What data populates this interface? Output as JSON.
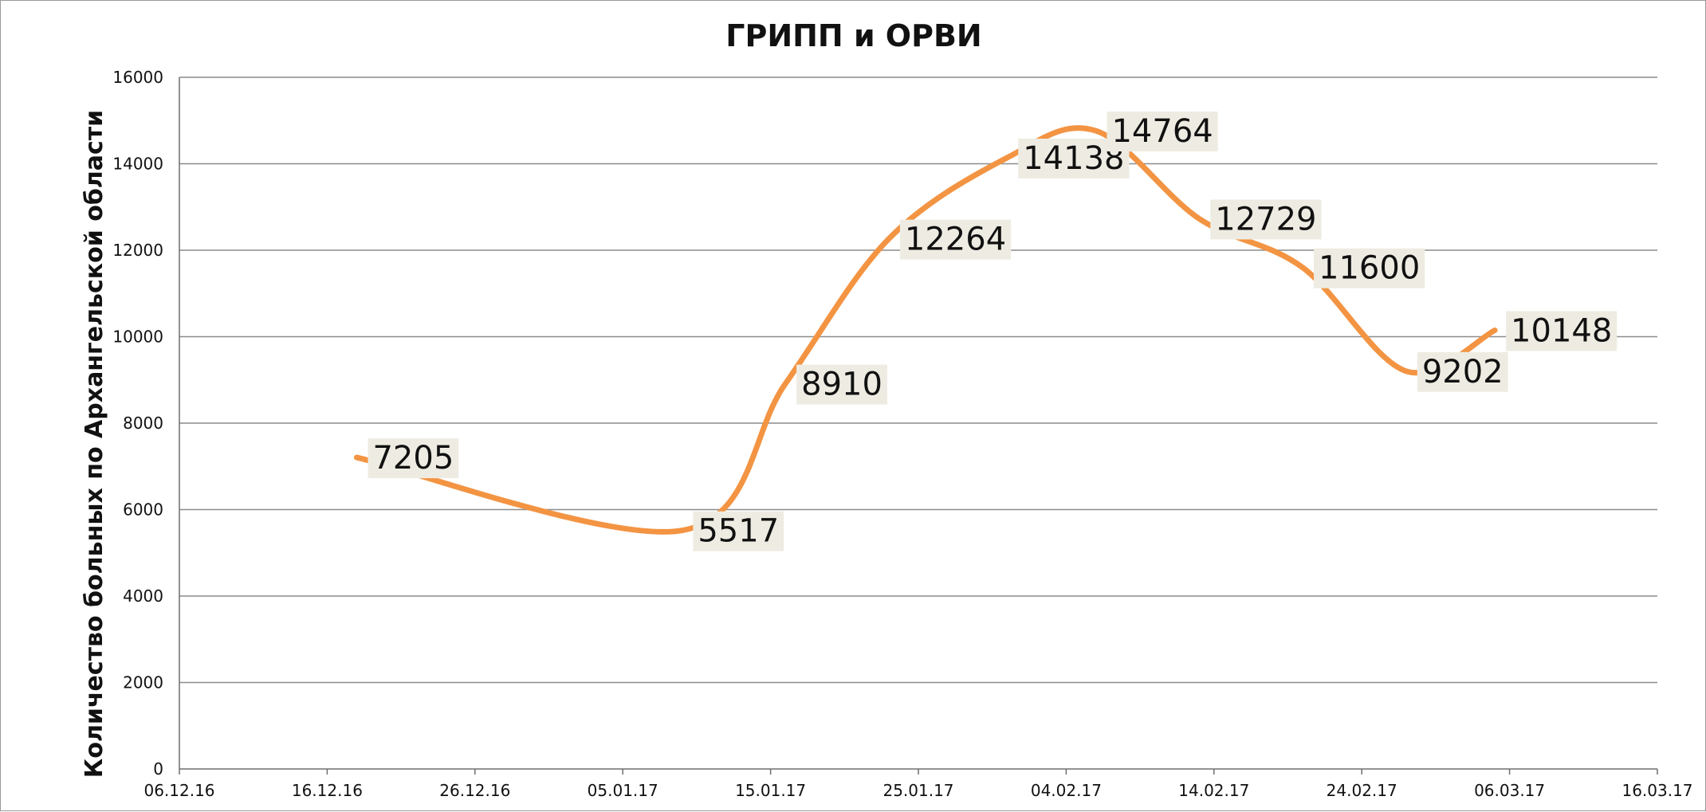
{
  "chart_data": {
    "type": "line",
    "title": "ГРИПП и ОРВИ",
    "xlabel": "",
    "ylabel": "Количество больных по Архангельской области",
    "ylim": [
      0,
      16000
    ],
    "yticks": [
      "0",
      "2000",
      "4000",
      "6000",
      "8000",
      "10000",
      "12000",
      "14000",
      "16000"
    ],
    "xlim": [
      "06.12.16",
      "16.03.17"
    ],
    "xticks": [
      "06.12.16",
      "16.12.16",
      "26.12.16",
      "05.01.17",
      "15.01.17",
      "25.01.17",
      "04.02.17",
      "14.02.17",
      "24.02.17",
      "06.03.17",
      "16.03.17"
    ],
    "grid": true,
    "series": [
      {
        "color": "#f39443",
        "points": [
          {
            "x": "18.12.16",
            "y": 7205,
            "label": "7205"
          },
          {
            "x": "09.01.17",
            "y": 5517,
            "label": "5517"
          },
          {
            "x": "16.01.17",
            "y": 8910,
            "label": "8910"
          },
          {
            "x": "23.01.17",
            "y": 12264,
            "label": "12264"
          },
          {
            "x": "31.01.17",
            "y": 14138,
            "label": "14138"
          },
          {
            "x": "06.02.17",
            "y": 14764,
            "label": "14764"
          },
          {
            "x": "13.02.17",
            "y": 12729,
            "label": "12729"
          },
          {
            "x": "20.02.17",
            "y": 11600,
            "label": "11600"
          },
          {
            "x": "27.02.17",
            "y": 9202,
            "label": "9202"
          },
          {
            "x": "05.03.17",
            "y": 10148,
            "label": "10148"
          }
        ]
      }
    ]
  }
}
